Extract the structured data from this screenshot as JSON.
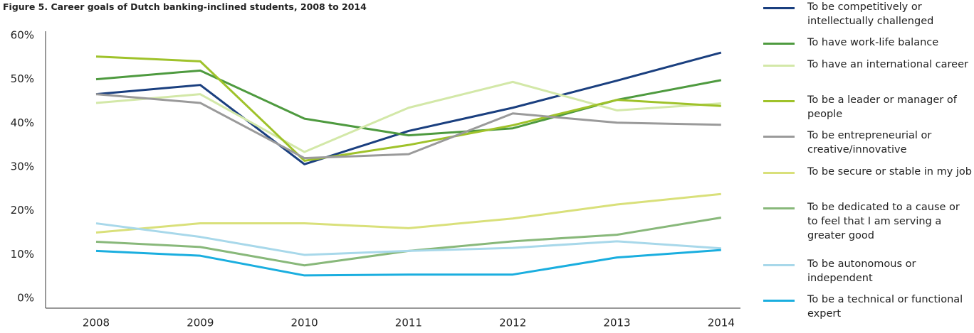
{
  "chart_data": {
    "type": "line",
    "title": "Figure 5. Career goals of Dutch banking-inclined students, 2008 to 2014",
    "categories": [
      "2008",
      "2009",
      "2010",
      "2011",
      "2012",
      "2013",
      "2014"
    ],
    "series": [
      {
        "name": "To be competitively or intellectually challenged",
        "color": "#1a3f7f",
        "values": [
          46.6,
          48.7,
          30.6,
          38.2,
          43.5,
          49.7,
          56.1
        ]
      },
      {
        "name": "To have work-life balance",
        "color": "#4e9a3f",
        "values": [
          50,
          52,
          41,
          37.2,
          38.8,
          45.3,
          49.8
        ]
      },
      {
        "name": "To have an international career",
        "color": "#d3e8a8",
        "values": [
          44.6,
          46.6,
          33.4,
          43.5,
          49.4,
          42.9,
          44.5
        ]
      },
      {
        "name": "To be a leader or manager of people",
        "color": "#9fc22a",
        "values": [
          55.2,
          54.1,
          31.4,
          35,
          39.5,
          45.3,
          43.9
        ]
      },
      {
        "name": "To be entrepreneurial or creative/innovative",
        "color": "#9a9a9a",
        "values": [
          46.6,
          44.6,
          32,
          32.9,
          42.2,
          40.1,
          39.6
        ]
      },
      {
        "name": "To be secure or stable in my job",
        "color": "#d9e07a",
        "values": [
          15,
          17.1,
          17.1,
          16,
          18.2,
          21.4,
          23.8
        ]
      },
      {
        "name": "To be dedicated to a cause or to feel that I am serving a greater good",
        "color": "#88b87a",
        "values": [
          12.9,
          11.7,
          7.5,
          10.8,
          13,
          14.5,
          18.4
        ]
      },
      {
        "name": "To be autonomous or independent",
        "color": "#a8d8ea",
        "values": [
          17.1,
          14,
          9.9,
          10.8,
          11.5,
          13,
          11.4
        ]
      },
      {
        "name": "To be a technical or functional expert",
        "color": "#1aaedf",
        "values": [
          10.8,
          9.7,
          5.2,
          5.4,
          5.4,
          9.3,
          11
        ]
      }
    ],
    "ylim": [
      0,
      60
    ],
    "yticks": [
      {
        "value": 0,
        "label": "0%"
      },
      {
        "value": 10,
        "label": "10%"
      },
      {
        "value": 20,
        "label": "20%"
      },
      {
        "value": 30,
        "label": "30%"
      },
      {
        "value": 40,
        "label": "40%"
      },
      {
        "value": 50,
        "label": "50%"
      },
      {
        "value": 60,
        "label": "60%"
      }
    ],
    "grid": false,
    "legend": "right"
  }
}
